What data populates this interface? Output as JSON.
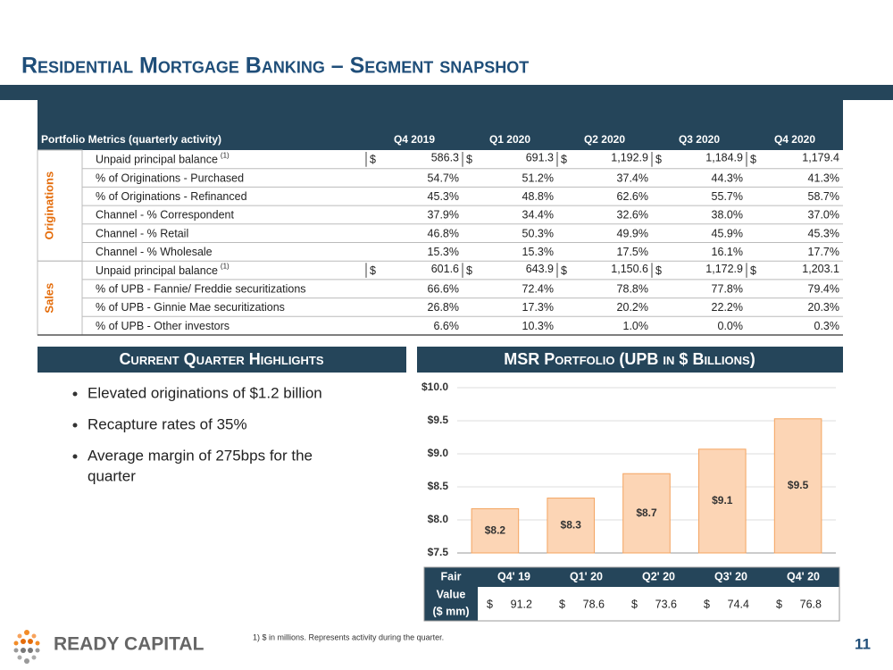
{
  "title": "Residential Mortgage Banking – Segment snapshot",
  "table": {
    "header": [
      "Portfolio Metrics (quarterly activity)",
      "Q4 2019",
      "Q1 2020",
      "Q2 2020",
      "Q3 2020",
      "Q4 2020"
    ],
    "groups": [
      {
        "label": "Originations",
        "rows": [
          {
            "label": "Unpaid principal balance",
            "note": "(1)",
            "cells": [
              {
                "sym": "$",
                "val": "586.3"
              },
              {
                "sym": "$",
                "val": "691.3"
              },
              {
                "sym": "$",
                "val": "1,192.9"
              },
              {
                "sym": "$",
                "val": "1,184.9"
              },
              {
                "sym": "$",
                "val": "1,179.4"
              }
            ]
          },
          {
            "label": " % of Originations - Purchased",
            "cells": [
              "54.7%",
              "51.2%",
              "37.4%",
              "44.3%",
              "41.3%"
            ]
          },
          {
            "label": " % of Originations - Refinanced",
            "cells": [
              "45.3%",
              "48.8%",
              "62.6%",
              "55.7%",
              "58.7%"
            ]
          },
          {
            "label": "Channel - % Correspondent",
            "cells": [
              "37.9%",
              "34.4%",
              "32.6%",
              "38.0%",
              "37.0%"
            ]
          },
          {
            "label": "Channel - % Retail",
            "cells": [
              "46.8%",
              "50.3%",
              "49.9%",
              "45.9%",
              "45.3%"
            ]
          },
          {
            "label": "Channel - % Wholesale",
            "cells": [
              "15.3%",
              "15.3%",
              "17.5%",
              "16.1%",
              "17.7%"
            ]
          }
        ]
      },
      {
        "label": "Sales",
        "rows": [
          {
            "label": "Unpaid principal balance",
            "note": "(1)",
            "cells": [
              {
                "sym": "$",
                "val": "601.6"
              },
              {
                "sym": "$",
                "val": "643.9"
              },
              {
                "sym": "$",
                "val": "1,150.6"
              },
              {
                "sym": "$",
                "val": "1,172.9"
              },
              {
                "sym": "$",
                "val": "1,203.1"
              }
            ]
          },
          {
            "label": " % of UPB - Fannie/ Freddie securitizations",
            "cells": [
              "66.6%",
              "72.4%",
              "78.8%",
              "77.8%",
              "79.4%"
            ]
          },
          {
            "label": " % of UPB - Ginnie Mae securitizations",
            "cells": [
              "26.8%",
              "17.3%",
              "20.2%",
              "22.2%",
              "20.3%"
            ]
          },
          {
            "label": " % of UPB - Other investors",
            "cells": [
              "6.6%",
              "10.3%",
              "1.0%",
              "0.0%",
              "0.3%"
            ]
          }
        ]
      }
    ]
  },
  "highlights": {
    "heading": "Current Quarter Highlights",
    "bullets": [
      "Elevated originations of $1.2 billion",
      "Recapture rates of 35%",
      [
        "Average margin of 275bps for the",
        "quarter"
      ]
    ]
  },
  "chart_data": {
    "type": "bar",
    "title": "MSR Portfolio (UPB in $ Billions)",
    "categories": [
      "Q4' 19",
      "Q1' 20",
      "Q2' 20",
      "Q3' 20",
      "Q4' 20"
    ],
    "values": [
      8.17,
      8.33,
      8.7,
      9.07,
      9.53
    ],
    "value_labels": [
      "$8.2",
      "$8.3",
      "$8.7",
      "$9.1",
      "$9.5"
    ],
    "color": "#fcd5b5",
    "edge_color": "#f4a460",
    "ylim": [
      7.5,
      10
    ],
    "yticks": [
      {
        "value": 7.5,
        "label": "$7.5"
      },
      {
        "value": 8,
        "label": "$8.0"
      },
      {
        "value": 8.5,
        "label": "$8.5"
      },
      {
        "value": 9,
        "label": "$9.0"
      },
      {
        "value": 9.5,
        "label": "$9.5"
      },
      {
        "value": 10,
        "label": "$10.0"
      }
    ],
    "grid": true
  },
  "fair_value": {
    "label_lines": [
      "Fair",
      "Value",
      "($ mm)"
    ],
    "sym": "$",
    "values": [
      "91.2",
      "78.6",
      "73.6",
      "74.4",
      "76.8"
    ]
  },
  "footer": {
    "logo": "READY CAPITAL",
    "footnote": "1)    $ in millions. Represents activity during the quarter.",
    "page": "11"
  }
}
